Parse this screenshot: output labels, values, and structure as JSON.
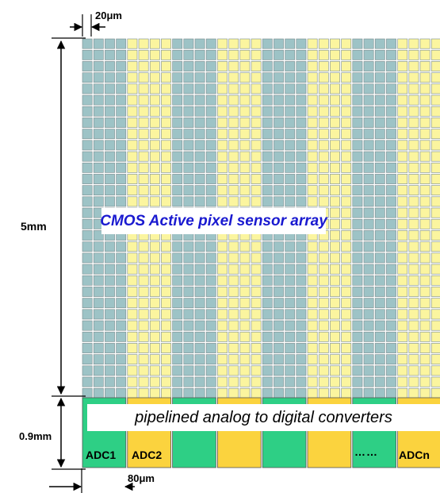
{
  "dimensions": {
    "pixel_pitch": "20μm",
    "array_height": "5mm",
    "adc_height": "0.9mm",
    "adc_pitch": "80μm"
  },
  "array": {
    "label": "CMOS Active pixel sensor array",
    "colors": {
      "teal": "#9dc3c6",
      "yellow": "#fbf59f",
      "grid_line": "#ffffff"
    }
  },
  "adc": {
    "banner": "pipelined analog to digital converters",
    "labels": [
      "ADC1",
      "ADC2",
      "ADCn"
    ],
    "ellipsis": "……",
    "colors": {
      "green": "#2ecf85",
      "orange": "#fbd33e"
    }
  }
}
